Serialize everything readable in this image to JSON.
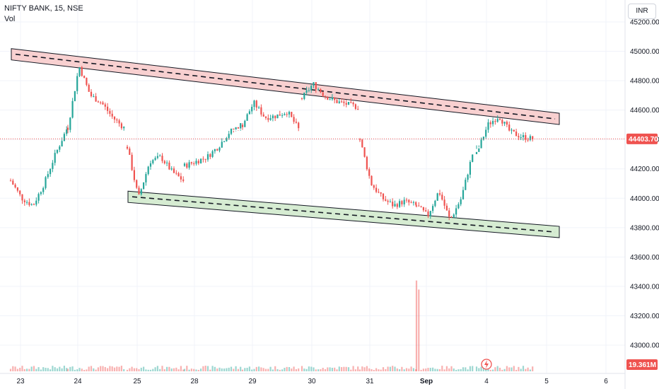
{
  "header": {
    "title": "NIFTY BANK, 15, NSE",
    "volume_label": "Vol",
    "currency": "INR"
  },
  "chart_data": {
    "type": "candlestick",
    "ylim": [
      42850,
      45350
    ],
    "y_ticks": [
      45200,
      45000,
      44800,
      44600,
      44400,
      44200,
      44000,
      43800,
      43600,
      43400,
      43200,
      43000
    ],
    "x_tick_labels": [
      "23",
      "24",
      "25",
      "28",
      "29",
      "30",
      "31",
      "Sep",
      "4",
      "5",
      "6"
    ],
    "last_price": "44403.70",
    "last_volume": "19.361M",
    "up_color": "#26a69a",
    "down_color": "#ef5350",
    "days": [
      {
        "label": "23",
        "open": 44120,
        "close": 44470,
        "high": 44510,
        "low": 43930
      },
      {
        "label": "24",
        "open": 44470,
        "close": 44480,
        "high": 44920,
        "low": 44430
      },
      {
        "label": "25",
        "open": 44350,
        "close": 44120,
        "high": 44370,
        "low": 43990
      },
      {
        "label": "28",
        "open": 44220,
        "close": 44450,
        "high": 44460,
        "low": 44180
      },
      {
        "label": "29",
        "open": 44450,
        "close": 44470,
        "high": 44670,
        "low": 44410
      },
      {
        "label": "30",
        "open": 44680,
        "close": 44620,
        "high": 44790,
        "low": 44600
      },
      {
        "label": "31",
        "open": 44400,
        "close": 43950,
        "high": 44410,
        "low": 43880
      },
      {
        "label": "Sep",
        "open": 43950,
        "close": 44300,
        "high": 44320,
        "low": 43820
      },
      {
        "label": "4",
        "open": 44300,
        "close": 44404,
        "high": 44590,
        "low": 44360
      }
    ],
    "volume": {
      "spike_day": "Sep",
      "spike_value": "43440"
    },
    "trendlines": [
      {
        "name": "resistance",
        "color": "#f8d0d0",
        "from": {
          "day": "23",
          "price": 44980
        },
        "to": {
          "day": "5",
          "price": 44540
        }
      },
      {
        "name": "support",
        "color": "#d6ecd2",
        "from": {
          "day": "25",
          "price": 44010
        },
        "to": {
          "day": "5",
          "price": 43770
        }
      }
    ]
  }
}
